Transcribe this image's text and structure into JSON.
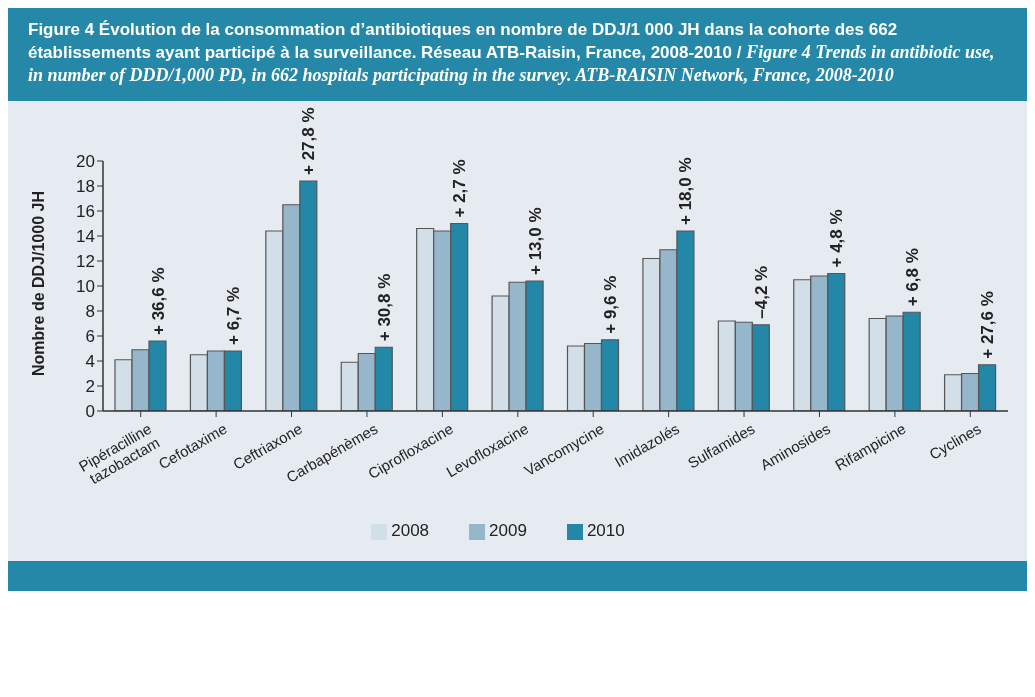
{
  "chart_data": {
    "type": "bar",
    "title": "Figure 4  Évolution de la consommation d’antibiotiques en nombre de DDJ/1 000 JH dans la cohorte des 662 établissements ayant participé à la surveillance. Réseau ATB-Raisin, France, 2008-2010  /",
    "subtitle": "Figure 4  Trends in antibiotic use, in number of DDD/1,000 PD, in 662 hospitals participating in the survey. ATB-RAISIN Network, France, 2008-2010",
    "ylabel": "Nombre de DDJ/1000 JH",
    "categories": [
      "Pipéracilline tazobactam",
      "Cefotaxime",
      "Ceftriaxone",
      "Carbapénèmes",
      "Ciprofloxacine",
      "Levofloxacine",
      "Vancomycine",
      "Imidazolés",
      "Sulfamides",
      "Aminosides",
      "Rifampicine",
      "Cyclines"
    ],
    "series": [
      {
        "name": "2008",
        "color": "#d3dfe8",
        "values": [
          4.1,
          4.5,
          14.4,
          3.9,
          14.6,
          9.2,
          5.2,
          12.2,
          7.2,
          10.5,
          7.4,
          2.9
        ]
      },
      {
        "name": "2009",
        "color": "#96b6cb",
        "values": [
          4.9,
          4.8,
          16.5,
          4.6,
          14.4,
          10.3,
          5.4,
          12.9,
          7.1,
          10.8,
          7.6,
          3.0
        ]
      },
      {
        "name": "2010",
        "color": "#2387a8",
        "values": [
          5.6,
          4.8,
          18.4,
          5.1,
          15.0,
          10.4,
          5.7,
          14.4,
          6.9,
          11.0,
          7.9,
          3.7
        ]
      }
    ],
    "ylim": [
      0,
      20
    ],
    "yticks": [
      0,
      2,
      4,
      6,
      8,
      10,
      12,
      14,
      16,
      18,
      20
    ],
    "grid": false,
    "legend": "bottom",
    "annotations": [
      "+ 36,6 %",
      "+ 6,7 %",
      "+ 27,8 %",
      "+ 30,8 %",
      "+ 2,7 %",
      "+ 13,0 %",
      "+ 9,6 %",
      "+ 18,0 %",
      "–4,2 %",
      "+ 4,8 %",
      "+ 6,8 %",
      "+ 27,6 %"
    ]
  }
}
